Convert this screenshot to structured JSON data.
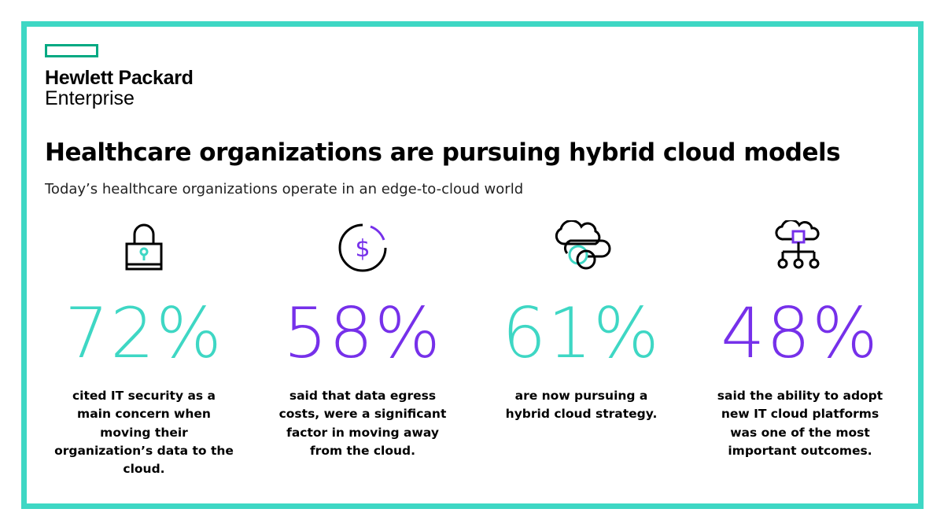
{
  "brand": {
    "name_line1": "Hewlett Packard",
    "name_line2": "Enterprise",
    "logo_color": "#01a982"
  },
  "frame_color": "#3ed7c4",
  "title": "Healthcare organizations are pursuing hybrid cloud models",
  "subtitle": "Today’s healthcare organizations operate in an edge-to-cloud world",
  "stats": [
    {
      "icon": "lock-icon",
      "value": "72%",
      "color": "#3ed7c4",
      "description": "cited IT security as a main concern when moving their organization’s data to the cloud."
    },
    {
      "icon": "dollar-circle-icon",
      "value": "58%",
      "color": "#7630ea",
      "description": "said that data egress costs, were a significant factor in moving away from the cloud."
    },
    {
      "icon": "hybrid-cloud-icon",
      "value": "61%",
      "color": "#3ed7c4",
      "description": "are now pursuing a hybrid cloud strategy."
    },
    {
      "icon": "cloud-network-icon",
      "value": "48%",
      "color": "#7630ea",
      "description": "said the ability to adopt new IT cloud platforms was one of the most important outcomes."
    }
  ]
}
